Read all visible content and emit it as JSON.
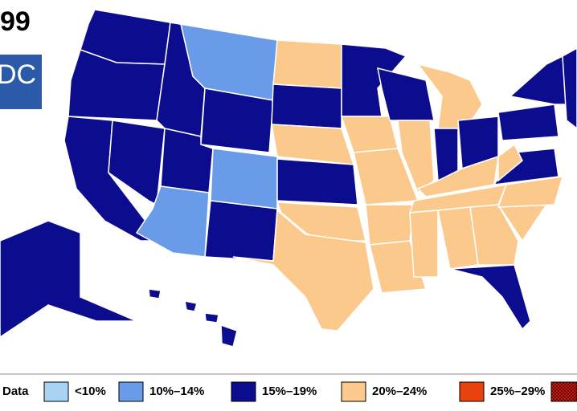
{
  "title": "99",
  "logo": "DC",
  "legend": {
    "no_data_label": "Data",
    "items": [
      {
        "label": "<10%",
        "color": "#a9d3f5"
      },
      {
        "label": "10%–14%",
        "color": "#6a9be8"
      },
      {
        "label": "15%–19%",
        "color": "#0c0c8e"
      },
      {
        "label": "20%–24%",
        "color": "#fcc98c"
      },
      {
        "label": "25%–29%",
        "color": "#e8420e"
      }
    ]
  }
}
